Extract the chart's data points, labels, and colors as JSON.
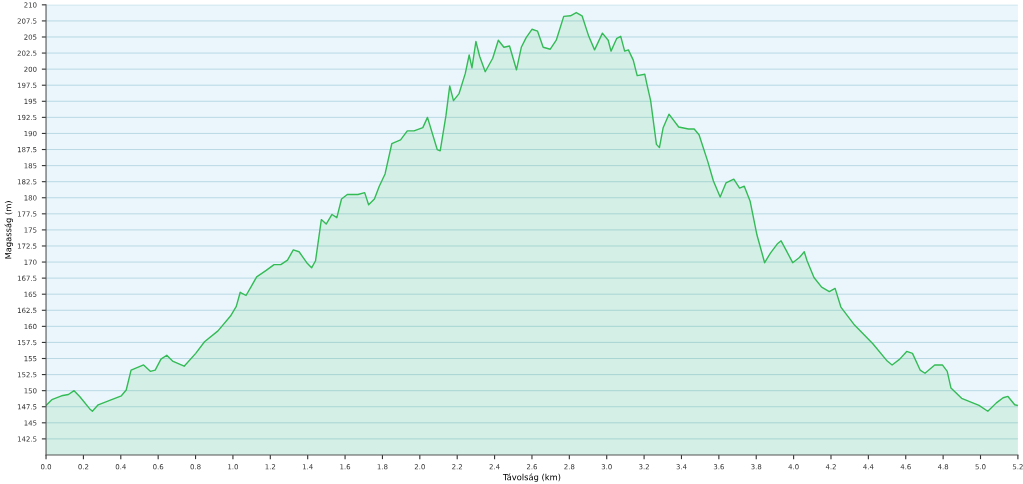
{
  "chart_data": {
    "type": "area",
    "xlabel": "Távolság (km)",
    "ylabel": "Magasság (m)",
    "x": [
      0,
      0.031,
      0.083,
      0.12,
      0.15,
      0.18,
      0.233,
      0.248,
      0.279,
      0.351,
      0.403,
      0.429,
      0.455,
      0.522,
      0.558,
      0.584,
      0.615,
      0.646,
      0.677,
      0.739,
      0.801,
      0.848,
      0.92,
      0.987,
      1.018,
      1.039,
      1.07,
      1.096,
      1.127,
      1.178,
      1.22,
      1.256,
      1.292,
      1.323,
      1.354,
      1.395,
      1.421,
      1.442,
      1.473,
      1.499,
      1.53,
      1.556,
      1.581,
      1.612,
      1.669,
      1.705,
      1.726,
      1.757,
      1.783,
      1.814,
      1.85,
      1.897,
      1.933,
      1.969,
      2.016,
      2.041,
      2.093,
      2.109,
      2.14,
      2.16,
      2.18,
      2.21,
      2.243,
      2.264,
      2.279,
      2.3,
      2.32,
      2.35,
      2.39,
      2.42,
      2.45,
      2.48,
      2.517,
      2.543,
      2.569,
      2.6,
      2.63,
      2.66,
      2.698,
      2.73,
      2.77,
      2.806,
      2.837,
      2.868,
      2.904,
      2.935,
      2.977,
      3.008,
      3.023,
      3.054,
      3.075,
      3.096,
      3.116,
      3.142,
      3.163,
      3.204,
      3.214,
      3.235,
      3.266,
      3.282,
      3.302,
      3.333,
      3.385,
      3.437,
      3.468,
      3.494,
      3.54,
      3.571,
      3.607,
      3.638,
      3.68,
      3.711,
      3.736,
      3.767,
      3.804,
      3.845,
      3.876,
      3.912,
      3.933,
      3.959,
      3.995,
      4.031,
      4.057,
      4.072,
      4.109,
      4.15,
      4.191,
      4.222,
      4.253,
      4.326,
      4.424,
      4.501,
      4.527,
      4.568,
      4.605,
      4.636,
      4.677,
      4.703,
      4.755,
      4.796,
      4.822,
      4.842,
      4.899,
      4.992,
      5.039,
      5.085,
      5.121,
      5.147,
      5.183,
      5.2
    ],
    "series": [
      {
        "color": "#33bb55",
        "values": [
          147.7,
          148.6,
          149.2,
          149.4,
          150.0,
          149.1,
          147.2,
          146.8,
          147.8,
          148.6,
          149.2,
          150.1,
          153.2,
          154.0,
          153.0,
          153.2,
          154.9,
          155.5,
          154.6,
          153.8,
          155.8,
          157.6,
          159.3,
          161.6,
          163.1,
          165.3,
          164.8,
          166.1,
          167.7,
          168.7,
          169.6,
          169.6,
          170.3,
          171.9,
          171.6,
          169.9,
          169.1,
          170.2,
          176.6,
          175.9,
          177.4,
          176.9,
          179.8,
          180.5,
          180.5,
          180.8,
          178.9,
          179.8,
          181.8,
          183.7,
          188.4,
          189.0,
          190.4,
          190.4,
          190.9,
          192.5,
          187.5,
          187.3,
          192.8,
          197.4,
          195.1,
          196.2,
          199.3,
          202.2,
          200.2,
          204.3,
          202.0,
          199.6,
          201.7,
          204.5,
          203.4,
          203.6,
          199.9,
          203.4,
          204.9,
          206.2,
          205.9,
          203.4,
          203.1,
          204.5,
          208.2,
          208.3,
          208.8,
          208.3,
          205.1,
          203.0,
          205.6,
          204.5,
          202.8,
          204.8,
          205.1,
          202.8,
          203.0,
          201.4,
          199.0,
          199.2,
          197.8,
          195.1,
          188.3,
          187.8,
          190.9,
          193.0,
          191.0,
          190.7,
          190.7,
          189.8,
          185.7,
          182.6,
          180.1,
          182.3,
          182.9,
          181.5,
          181.8,
          179.5,
          174.2,
          169.9,
          171.4,
          172.8,
          173.3,
          171.9,
          169.9,
          170.7,
          171.6,
          170.2,
          167.6,
          166.1,
          165.4,
          165.9,
          163.0,
          160.2,
          157.3,
          154.6,
          154.0,
          154.9,
          156.1,
          155.8,
          153.2,
          152.7,
          154.0,
          154.0,
          153.0,
          150.4,
          148.8,
          147.7,
          146.8,
          148.1,
          148.9,
          149.1,
          147.8,
          147.7
        ]
      }
    ],
    "xlim": [
      0,
      5.2
    ],
    "xticks": [
      {
        "value": 0,
        "label": "0.0"
      },
      0.2,
      0.4,
      0.6,
      0.8,
      {
        "value": 1,
        "label": "1.0"
      },
      1.2,
      1.4,
      1.6,
      1.8,
      {
        "value": 2,
        "label": "2.0"
      },
      2.2,
      2.4,
      2.6,
      2.8,
      {
        "value": 3,
        "label": "3.0"
      },
      3.2,
      3.4,
      3.6,
      3.8,
      {
        "value": 4,
        "label": "4.0"
      },
      4.2,
      4.4,
      4.6,
      4.8,
      {
        "value": 5,
        "label": "5.0"
      },
      5.2
    ],
    "ylim": [
      140,
      210
    ],
    "yticks": [
      142.5,
      145,
      147.5,
      150,
      152.5,
      155,
      157.5,
      160,
      162.5,
      165,
      167.5,
      170,
      172.5,
      175,
      177.5,
      180,
      182.5,
      185,
      187.5,
      190,
      192.5,
      195,
      197.5,
      200,
      202.5,
      205,
      207.5,
      210
    ],
    "grid": "y",
    "legend": false
  }
}
